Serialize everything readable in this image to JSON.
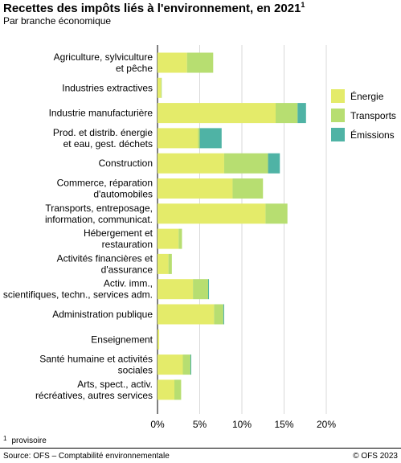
{
  "header": {
    "title": "Recettes des impôts liés à l'environnement, en 2021",
    "title_note_mark": "1",
    "subtitle": "Par branche économique"
  },
  "footnote": {
    "mark": "1",
    "text": "provisoire"
  },
  "footer": {
    "source": "Source: OFS – Comptabilité environnementale",
    "copyright": "© OFS 2023"
  },
  "chart_data": {
    "type": "bar",
    "orientation": "horizontal",
    "stacked": true,
    "categories": [
      "Agriculture, sylviculture\net pêche",
      "Industries extractives",
      "Industrie manufacturière",
      "Prod. et distrib. énergie\net eau, gest. déchets",
      "Construction",
      "Commerce, réparation\nd'automobiles",
      "Transports, entreposage,\ninformation, communicat.",
      "Hébergement et\nrestauration",
      "Activités financières et\nd'assurance",
      "Activ. imm.,\nscientifiques, techn., services adm.",
      "Administration publique",
      "Enseignement",
      "Santé humaine et activités\nsociales",
      "Arts, spect., activ.\nrécréatives, autres services"
    ],
    "series": [
      {
        "name": "Énergie",
        "color": "#e4eb6a",
        "values": [
          3.5,
          0.4,
          14.0,
          4.8,
          7.9,
          8.9,
          12.8,
          2.5,
          1.3,
          4.2,
          6.7,
          0.2,
          3.0,
          2.0
        ]
      },
      {
        "name": "Transports",
        "color": "#b7de71",
        "values": [
          3.1,
          0.1,
          2.6,
          0.2,
          5.2,
          3.6,
          2.6,
          0.4,
          0.4,
          1.8,
          1.1,
          0.0,
          0.9,
          0.8
        ]
      },
      {
        "name": "Émissions",
        "color": "#4fb3a5",
        "values": [
          0.0,
          0.0,
          1.0,
          2.6,
          1.4,
          0.0,
          0.0,
          0.0,
          0.0,
          0.1,
          0.1,
          0.0,
          0.1,
          0.0
        ]
      }
    ],
    "xlim": [
      0,
      20
    ],
    "xticks": [
      0,
      5,
      10,
      15,
      20
    ],
    "xtick_labels": [
      "0%",
      "5%",
      "10%",
      "15%",
      "20%"
    ],
    "x_unit": "%",
    "grid": true,
    "legend_position": "right"
  }
}
